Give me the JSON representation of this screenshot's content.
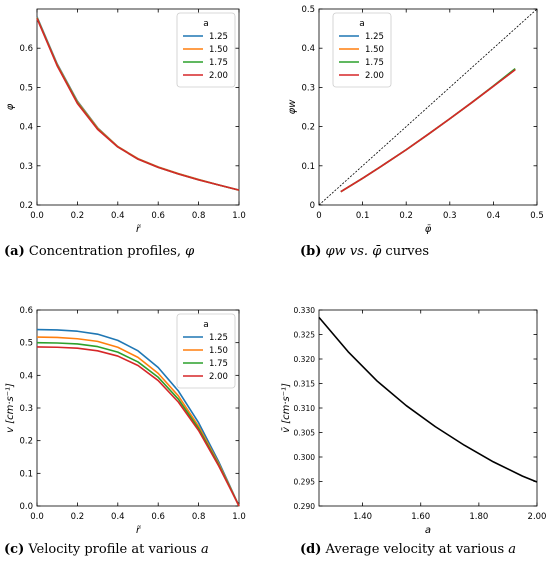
{
  "captions": [
    {
      "tag": "(a)",
      "pre": " Concentration profiles, ",
      "var": "φ",
      "post": ""
    },
    {
      "tag": "(b)",
      "pre": " ",
      "var": "φw vs. φ̄",
      "post": " curves"
    },
    {
      "tag": "(c)",
      "pre": " Velocity profile at various ",
      "var": "a",
      "post": ""
    },
    {
      "tag": "(d)",
      "pre": " Average velocity at various ",
      "var": "a",
      "post": ""
    }
  ],
  "colors": {
    "a_1_25": "#1f77b4",
    "a_1_50": "#ff7f0e",
    "a_1_75": "#2ca02c",
    "a_2_00": "#d62728",
    "black": "#000000"
  },
  "chart_data": [
    {
      "id": "a",
      "type": "line",
      "xlabel": "r̃",
      "ylabel": "φ",
      "xlim": [
        0,
        1.0
      ],
      "ylim": [
        0.2,
        0.7
      ],
      "xticks": [
        "0.0",
        "0.2",
        "0.4",
        "0.6",
        "0.8",
        "1.0"
      ],
      "yticks": [
        "0.2",
        "0.3",
        "0.4",
        "0.5",
        "0.6"
      ],
      "legend_title": "a",
      "legend_position": "top-right",
      "x": [
        0,
        0.1,
        0.2,
        0.3,
        0.4,
        0.5,
        0.6,
        0.7,
        0.8,
        0.9,
        1.0
      ],
      "series": [
        {
          "name": "1.25",
          "color": "#1f77b4",
          "values": [
            0.68,
            0.56,
            0.465,
            0.397,
            0.349,
            0.318,
            0.297,
            0.28,
            0.265,
            0.251,
            0.238
          ]
        },
        {
          "name": "1.50",
          "color": "#ff7f0e",
          "values": [
            0.678,
            0.558,
            0.463,
            0.396,
            0.349,
            0.318,
            0.297,
            0.28,
            0.265,
            0.251,
            0.238
          ]
        },
        {
          "name": "1.75",
          "color": "#2ca02c",
          "values": [
            0.677,
            0.556,
            0.461,
            0.394,
            0.348,
            0.317,
            0.296,
            0.279,
            0.264,
            0.251,
            0.238
          ]
        },
        {
          "name": "2.00",
          "color": "#d62728",
          "values": [
            0.676,
            0.555,
            0.459,
            0.393,
            0.348,
            0.317,
            0.296,
            0.279,
            0.264,
            0.251,
            0.238
          ]
        }
      ]
    },
    {
      "id": "b",
      "type": "line",
      "xlabel": "φ̄",
      "ylabel": "φw",
      "xlim": [
        0,
        0.5
      ],
      "ylim": [
        0,
        0.5
      ],
      "xticks": [
        "0",
        "0.1",
        "0.2",
        "0.3",
        "0.4",
        "0.5"
      ],
      "yticks": [
        "0",
        "0.1",
        "0.2",
        "0.3",
        "0.4",
        "0.5"
      ],
      "legend_title": "a",
      "legend_position": "top-left",
      "diagonal": true,
      "x": [
        0.05,
        0.1,
        0.15,
        0.2,
        0.25,
        0.3,
        0.35,
        0.4,
        0.45
      ],
      "series": [
        {
          "name": "1.25",
          "color": "#1f77b4",
          "values": [
            0.034,
            0.068,
            0.104,
            0.141,
            0.18,
            0.22,
            0.261,
            0.303,
            0.346
          ]
        },
        {
          "name": "1.50",
          "color": "#ff7f0e",
          "values": [
            0.034,
            0.068,
            0.104,
            0.141,
            0.18,
            0.22,
            0.261,
            0.303,
            0.346
          ]
        },
        {
          "name": "1.75",
          "color": "#2ca02c",
          "values": [
            0.034,
            0.068,
            0.104,
            0.141,
            0.18,
            0.22,
            0.261,
            0.304,
            0.348
          ]
        },
        {
          "name": "2.00",
          "color": "#d62728",
          "values": [
            0.034,
            0.068,
            0.104,
            0.141,
            0.18,
            0.22,
            0.261,
            0.303,
            0.345
          ]
        }
      ]
    },
    {
      "id": "c",
      "type": "line",
      "xlabel": "r̃",
      "ylabel": "v [cm·s⁻¹]",
      "xlim": [
        0,
        1.0
      ],
      "ylim": [
        0,
        0.6
      ],
      "xticks": [
        "0.0",
        "0.2",
        "0.4",
        "0.6",
        "0.8",
        "1.0"
      ],
      "yticks": [
        "0.0",
        "0.1",
        "0.2",
        "0.3",
        "0.4",
        "0.5",
        "0.6"
      ],
      "legend_title": "a",
      "legend_position": "top-right",
      "x": [
        0,
        0.1,
        0.2,
        0.3,
        0.4,
        0.5,
        0.6,
        0.7,
        0.8,
        0.9,
        0.95,
        1.0
      ],
      "series": [
        {
          "name": "1.25",
          "color": "#1f77b4",
          "values": [
            0.54,
            0.539,
            0.535,
            0.526,
            0.507,
            0.475,
            0.424,
            0.352,
            0.255,
            0.135,
            0.068,
            0.0
          ]
        },
        {
          "name": "1.50",
          "color": "#ff7f0e",
          "values": [
            0.517,
            0.516,
            0.512,
            0.504,
            0.486,
            0.455,
            0.406,
            0.337,
            0.244,
            0.129,
            0.065,
            0.0
          ]
        },
        {
          "name": "1.75",
          "color": "#2ca02c",
          "values": [
            0.5,
            0.499,
            0.496,
            0.488,
            0.471,
            0.441,
            0.394,
            0.327,
            0.237,
            0.125,
            0.063,
            0.0
          ]
        },
        {
          "name": "2.00",
          "color": "#d62728",
          "values": [
            0.487,
            0.486,
            0.483,
            0.475,
            0.459,
            0.43,
            0.384,
            0.318,
            0.231,
            0.122,
            0.061,
            0.0
          ]
        }
      ]
    },
    {
      "id": "d",
      "type": "line",
      "xlabel": "a",
      "ylabel": "v̄ [cm·s⁻¹]",
      "xlim": [
        1.25,
        2.0
      ],
      "ylim": [
        0.29,
        0.33
      ],
      "xticks": [
        "1.40",
        "1.60",
        "1.80",
        "2.00"
      ],
      "yticks": [
        "0.290",
        "0.295",
        "0.300",
        "0.305",
        "0.310",
        "0.315",
        "0.320",
        "0.325",
        "0.330"
      ],
      "x": [
        1.25,
        1.35,
        1.45,
        1.55,
        1.65,
        1.75,
        1.85,
        1.95,
        2.0
      ],
      "series": [
        {
          "name": "",
          "color": "#000000",
          "values": [
            0.3285,
            0.3215,
            0.3155,
            0.3105,
            0.3062,
            0.3024,
            0.299,
            0.2961,
            0.2949
          ]
        }
      ]
    }
  ]
}
